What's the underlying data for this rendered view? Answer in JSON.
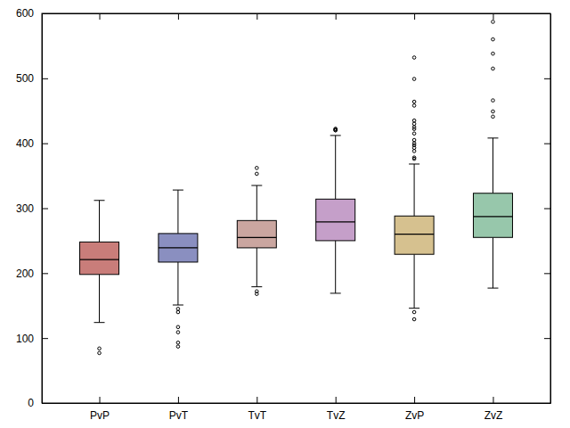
{
  "chart_data": {
    "type": "box",
    "categories": [
      "PvP",
      "PvT",
      "TvT",
      "TvZ",
      "ZvP",
      "ZvZ"
    ],
    "colors": [
      "#c97d7a",
      "#8a8fc0",
      "#caa6a0",
      "#c59fc9",
      "#d6c18f",
      "#97c7ab"
    ],
    "stats": [
      {
        "whisker_low": 124,
        "q1": 198,
        "median": 221,
        "q3": 248,
        "whisker_high": 312,
        "outliers": [
          84,
          77
        ]
      },
      {
        "whisker_low": 151,
        "q1": 217,
        "median": 239,
        "q3": 261,
        "whisker_high": 328,
        "outliers": [
          145,
          140,
          117,
          109,
          93,
          87
        ]
      },
      {
        "whisker_low": 179,
        "q1": 239,
        "median": 255,
        "q3": 281,
        "whisker_high": 335,
        "outliers": [
          362,
          353,
          172,
          168
        ]
      },
      {
        "whisker_low": 169,
        "q1": 250,
        "median": 279,
        "q3": 314,
        "whisker_high": 412,
        "outliers": [
          422,
          420,
          422,
          420
        ]
      },
      {
        "whisker_low": 146,
        "q1": 229,
        "median": 260,
        "q3": 288,
        "whisker_high": 368,
        "outliers": [
          532,
          499,
          464,
          458,
          435,
          430,
          425,
          422,
          415,
          405,
          400,
          397,
          393,
          388,
          378,
          376,
          140,
          129
        ]
      },
      {
        "whisker_low": 177,
        "q1": 255,
        "median": 287,
        "q3": 323,
        "whisker_high": 408,
        "outliers": [
          587,
          560,
          538,
          515,
          466,
          449,
          441
        ]
      }
    ],
    "ylim": [
      0,
      600
    ],
    "yticks": [
      0,
      100,
      200,
      300,
      400,
      500,
      600
    ],
    "grid": false
  }
}
